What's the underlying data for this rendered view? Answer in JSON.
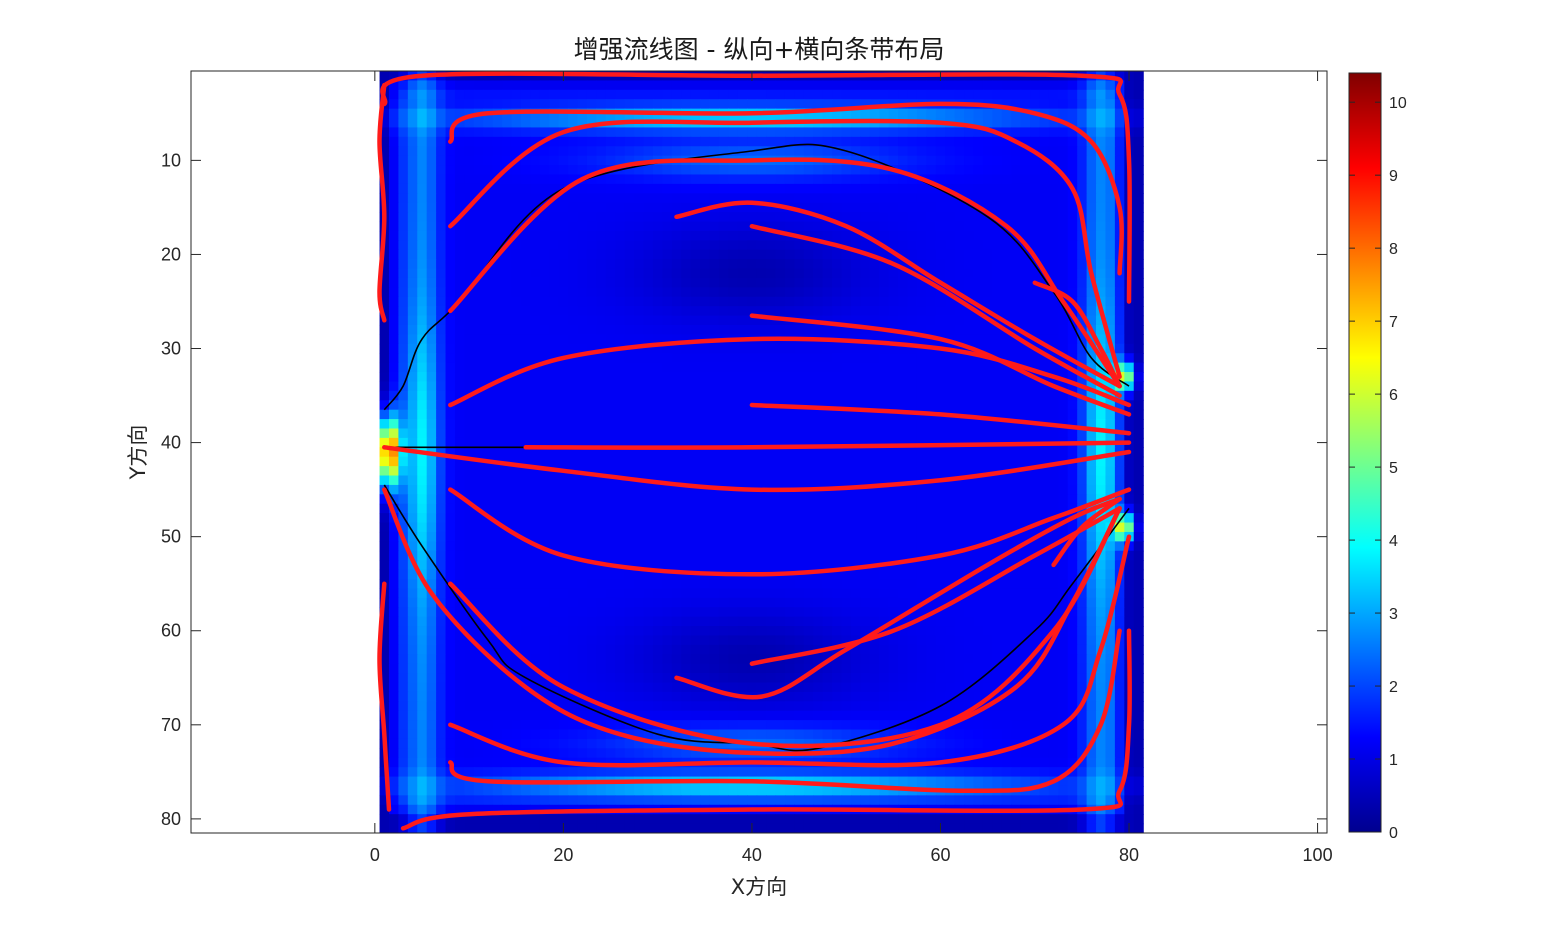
{
  "chart_data": {
    "type": "heatmap",
    "title": "增强流线图 - 纵向+横向条带布局",
    "xlabel": "X方向",
    "ylabel": "Y方向",
    "xlim": [
      -19.5,
      101
    ],
    "ylim": [
      0.5,
      81.5
    ],
    "y_reversed": true,
    "xticks": [
      0,
      20,
      40,
      60,
      80,
      100
    ],
    "yticks": [
      10,
      20,
      30,
      40,
      50,
      60,
      70,
      80
    ],
    "colormap": "jet",
    "colorbar": {
      "min": 0,
      "max": 10.4,
      "ticks": [
        0,
        1,
        2,
        3,
        4,
        5,
        6,
        7,
        8,
        9,
        10
      ],
      "location": "right"
    },
    "field_extent": {
      "x": [
        0.5,
        81.5
      ],
      "y": [
        0.5,
        81.5
      ]
    },
    "streamline_color": "#ff1a1a",
    "streamlines": [
      [
        [
          1,
          2
        ],
        [
          0.5,
          8
        ],
        [
          1,
          16
        ],
        [
          0.5,
          24
        ],
        [
          1,
          27
        ]
      ],
      [
        [
          1,
          55
        ],
        [
          0.5,
          63
        ],
        [
          1,
          71
        ],
        [
          1.5,
          79
        ]
      ],
      [
        [
          1,
          4
        ],
        [
          5,
          1
        ],
        [
          40,
          1
        ],
        [
          75,
          1
        ],
        [
          79,
          3
        ],
        [
          80,
          10
        ],
        [
          80,
          25
        ]
      ],
      [
        [
          3,
          81
        ],
        [
          10,
          79.5
        ],
        [
          40,
          79
        ],
        [
          75,
          79
        ],
        [
          79,
          77
        ],
        [
          80,
          70
        ],
        [
          80,
          60
        ]
      ],
      [
        [
          8,
          8
        ],
        [
          12,
          5
        ],
        [
          40,
          5
        ],
        [
          60,
          4
        ],
        [
          70,
          5
        ],
        [
          76,
          8
        ],
        [
          79,
          15
        ],
        [
          79,
          22
        ]
      ],
      [
        [
          8,
          74
        ],
        [
          12,
          76
        ],
        [
          40,
          76
        ],
        [
          62,
          77
        ],
        [
          72,
          76
        ],
        [
          77,
          70
        ],
        [
          79,
          60
        ]
      ],
      [
        [
          8,
          17
        ],
        [
          20,
          7
        ],
        [
          40,
          6
        ],
        [
          60,
          6
        ],
        [
          68,
          8
        ],
        [
          74,
          13
        ],
        [
          76,
          22
        ],
        [
          79,
          33
        ]
      ],
      [
        [
          8,
          26
        ],
        [
          22,
          12
        ],
        [
          40,
          10
        ],
        [
          55,
          11
        ],
        [
          67,
          17
        ],
        [
          73,
          25
        ],
        [
          79,
          34
        ]
      ],
      [
        [
          32,
          16
        ],
        [
          40,
          14.5
        ],
        [
          50,
          17
        ],
        [
          60,
          23
        ],
        [
          70,
          29
        ],
        [
          79,
          34
        ]
      ],
      [
        [
          40,
          17
        ],
        [
          55,
          21
        ],
        [
          70,
          30
        ],
        [
          79,
          35
        ]
      ],
      [
        [
          8,
          36
        ],
        [
          20,
          31
        ],
        [
          40,
          29
        ],
        [
          60,
          30
        ],
        [
          72,
          33
        ],
        [
          80,
          36
        ]
      ],
      [
        [
          40,
          26.5
        ],
        [
          60,
          29
        ],
        [
          72,
          34
        ],
        [
          80,
          37
        ]
      ],
      [
        [
          40,
          36
        ],
        [
          60,
          37
        ],
        [
          80,
          39
        ]
      ],
      [
        [
          16,
          40.5
        ],
        [
          40,
          40.5
        ],
        [
          80,
          40
        ]
      ],
      [
        [
          1,
          40.5
        ],
        [
          20,
          43
        ],
        [
          40,
          45
        ],
        [
          60,
          44
        ],
        [
          80,
          41
        ]
      ],
      [
        [
          8,
          45
        ],
        [
          20,
          52
        ],
        [
          40,
          54
        ],
        [
          60,
          52
        ],
        [
          72,
          48
        ],
        [
          80,
          45
        ]
      ],
      [
        [
          40,
          63.5
        ],
        [
          55,
          60
        ],
        [
          70,
          52
        ],
        [
          79,
          47
        ]
      ],
      [
        [
          32,
          65
        ],
        [
          41,
          67
        ],
        [
          50,
          62
        ],
        [
          65,
          53
        ],
        [
          74,
          48
        ],
        [
          79,
          46
        ]
      ],
      [
        [
          8,
          55
        ],
        [
          20,
          66
        ],
        [
          40,
          72
        ],
        [
          60,
          70
        ],
        [
          72,
          60
        ],
        [
          79,
          47
        ]
      ],
      [
        [
          1,
          45
        ],
        [
          6,
          56
        ],
        [
          16,
          66
        ],
        [
          26,
          71
        ],
        [
          40,
          73
        ],
        [
          55,
          72
        ],
        [
          68,
          66
        ],
        [
          74,
          57
        ],
        [
          79,
          47
        ]
      ],
      [
        [
          8,
          70
        ],
        [
          20,
          74
        ],
        [
          40,
          74
        ],
        [
          60,
          74
        ],
        [
          73,
          70
        ],
        [
          77,
          62
        ],
        [
          80,
          50
        ]
      ],
      [
        [
          70,
          23
        ],
        [
          74,
          25
        ],
        [
          77,
          30
        ],
        [
          79,
          34
        ]
      ],
      [
        [
          72,
          53
        ],
        [
          75,
          49
        ],
        [
          79,
          46
        ]
      ]
    ],
    "black_lines": [
      [
        [
          1,
          36.5
        ],
        [
          3,
          34
        ],
        [
          5,
          29
        ],
        [
          9,
          25
        ],
        [
          20,
          13
        ],
        [
          40,
          9
        ],
        [
          50,
          9
        ],
        [
          65,
          16
        ],
        [
          72,
          24
        ],
        [
          76,
          31
        ],
        [
          80,
          34
        ]
      ],
      [
        [
          1,
          40.5
        ],
        [
          32,
          40.5
        ]
      ],
      [
        [
          1,
          44.5
        ],
        [
          5,
          51
        ],
        [
          12,
          61
        ],
        [
          16,
          65
        ],
        [
          30,
          71
        ],
        [
          40,
          72
        ],
        [
          47,
          72.5
        ],
        [
          60,
          68
        ],
        [
          70,
          60
        ],
        [
          74,
          55
        ],
        [
          80,
          47
        ]
      ]
    ]
  }
}
